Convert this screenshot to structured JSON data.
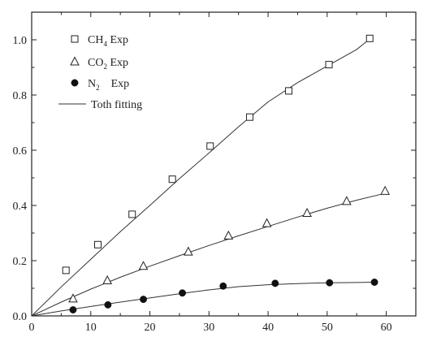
{
  "chart_data": {
    "type": "scatter",
    "title": "",
    "xlabel": "",
    "ylabel": "",
    "xlim": [
      0,
      65
    ],
    "ylim": [
      0,
      1.1
    ],
    "xticks": [
      "0",
      "10",
      "20",
      "30",
      "40",
      "50",
      "60"
    ],
    "yticks": [
      "0.0",
      "0.2",
      "0.4",
      "0.6",
      "0.8",
      "1.0"
    ],
    "grid": false,
    "legend_position": "top-left",
    "series": [
      {
        "name": "CH4 Exp",
        "label_main": "CH",
        "label_sub": "4",
        "label_tail": " Exp",
        "marker": "open-square",
        "points": [
          [
            5.8,
            0.165
          ],
          [
            11.2,
            0.258
          ],
          [
            17.0,
            0.368
          ],
          [
            23.8,
            0.495
          ],
          [
            30.2,
            0.615
          ],
          [
            36.9,
            0.72
          ],
          [
            43.5,
            0.815
          ],
          [
            50.3,
            0.91
          ],
          [
            57.2,
            1.005
          ]
        ]
      },
      {
        "name": "CO2 Exp",
        "label_main": "CO",
        "label_sub": "2",
        "label_tail": " Exp",
        "marker": "open-triangle",
        "points": [
          [
            7.0,
            0.062
          ],
          [
            12.8,
            0.128
          ],
          [
            18.9,
            0.18
          ],
          [
            26.5,
            0.232
          ],
          [
            33.3,
            0.29
          ],
          [
            39.8,
            0.335
          ],
          [
            46.6,
            0.372
          ],
          [
            53.3,
            0.415
          ],
          [
            59.8,
            0.452
          ]
        ]
      },
      {
        "name": "N2 Exp",
        "label_main": "N",
        "label_sub": "2",
        "label_tail": "    Exp",
        "marker": "filled-circle",
        "points": [
          [
            7.0,
            0.022
          ],
          [
            12.9,
            0.04
          ],
          [
            18.9,
            0.06
          ],
          [
            25.5,
            0.083
          ],
          [
            32.4,
            0.108
          ],
          [
            41.2,
            0.118
          ],
          [
            50.4,
            0.12
          ],
          [
            58.0,
            0.122
          ]
        ]
      }
    ],
    "fit": {
      "name": "Toth fitting",
      "label": "Toth fitting",
      "curves": [
        [
          [
            0,
            0
          ],
          [
            5,
            0.105
          ],
          [
            10,
            0.205
          ],
          [
            15,
            0.305
          ],
          [
            20,
            0.4
          ],
          [
            25,
            0.497
          ],
          [
            30,
            0.59
          ],
          [
            35,
            0.685
          ],
          [
            40,
            0.775
          ],
          [
            45,
            0.845
          ],
          [
            50,
            0.905
          ],
          [
            55,
            0.965
          ],
          [
            57.2,
            1.003
          ]
        ],
        [
          [
            0,
            0
          ],
          [
            5,
            0.05
          ],
          [
            10,
            0.097
          ],
          [
            15,
            0.14
          ],
          [
            20,
            0.18
          ],
          [
            25,
            0.218
          ],
          [
            30,
            0.255
          ],
          [
            35,
            0.29
          ],
          [
            40,
            0.324
          ],
          [
            45,
            0.358
          ],
          [
            50,
            0.39
          ],
          [
            55,
            0.419
          ],
          [
            60,
            0.445
          ]
        ],
        [
          [
            0,
            0
          ],
          [
            5,
            0.018
          ],
          [
            10,
            0.034
          ],
          [
            15,
            0.05
          ],
          [
            20,
            0.065
          ],
          [
            25,
            0.08
          ],
          [
            30,
            0.094
          ],
          [
            35,
            0.106
          ],
          [
            40,
            0.113
          ],
          [
            45,
            0.117
          ],
          [
            50,
            0.12
          ],
          [
            55,
            0.121
          ],
          [
            58,
            0.122
          ]
        ]
      ]
    }
  }
}
